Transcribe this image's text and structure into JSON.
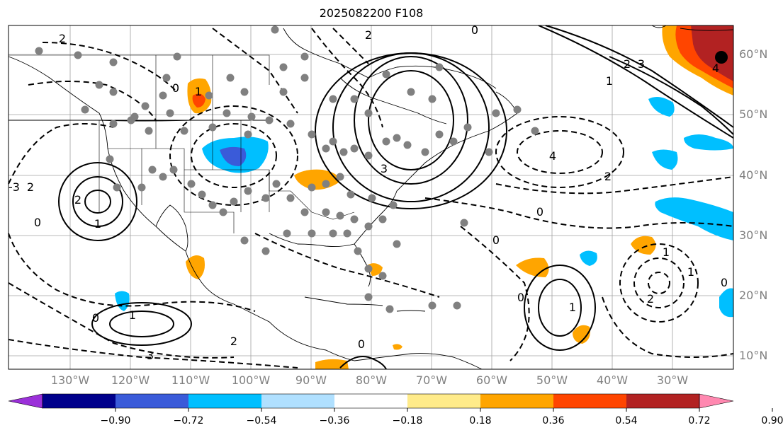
{
  "title": "2025082200 F108",
  "lon_labels": [
    "130°W",
    "120°W",
    "110°W",
    "100°W",
    "90°W",
    "80°W",
    "70°W",
    "60°W",
    "50°W",
    "40°W",
    "30°W"
  ],
  "lat_labels": [
    "60°N",
    "50°N",
    "40°N",
    "30°N",
    "20°N",
    "10°N"
  ],
  "colorbar": {
    "ticks": [
      "−0.90",
      "−0.72",
      "−0.54",
      "−0.36",
      "−0.18",
      "0.18",
      "0.36",
      "0.54",
      "0.72",
      "0.90"
    ],
    "colors": [
      "#9b30d9",
      "#00008b",
      "#3a5bd9",
      "#00bfff",
      "#b0e0ff",
      "#ffffff",
      "#ffeb8a",
      "#ffa500",
      "#ff4500",
      "#b22222",
      "#ff88b0"
    ]
  },
  "contour_labels": [
    "0",
    "2",
    "1",
    "2",
    "0",
    "4",
    "3",
    "0",
    "1",
    "2",
    "1",
    "0",
    "-3",
    "2",
    "3",
    "4",
    "2",
    "0",
    "1",
    "0",
    "1",
    "2",
    "3",
    "0",
    "2",
    "1",
    "0",
    "1",
    "2",
    "0"
  ],
  "colors": {
    "land": "#000000",
    "grid": "#a0a0a0",
    "station": "#808080"
  }
}
